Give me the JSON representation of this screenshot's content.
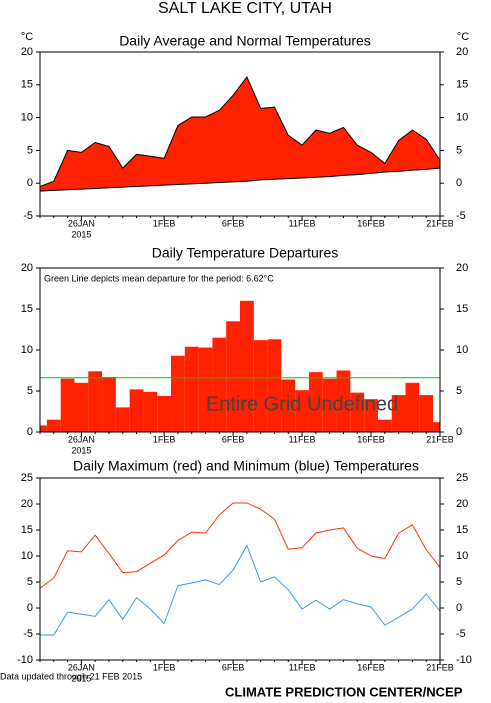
{
  "title": "SALT LAKE CITY, UTAH",
  "chart_data": [
    {
      "type": "area",
      "title": "Daily Average and Normal Temperatures",
      "y_unit": "°C",
      "categories": [
        null,
        null,
        null,
        "26JAN",
        null,
        null,
        null,
        null,
        null,
        "1FEB",
        null,
        null,
        null,
        null,
        "6FEB",
        null,
        null,
        null,
        null,
        "11FEB",
        null,
        null,
        null,
        null,
        "16FEB",
        null,
        null,
        null,
        null,
        "21FEB"
      ],
      "year_label": "2015",
      "series": [
        {
          "color": "#ff2200",
          "values": [
            -0.5,
            0.3,
            5.0,
            4.7,
            6.2,
            5.6,
            2.3,
            4.4,
            4.1,
            3.8,
            8.8,
            10.1,
            10.1,
            11.1,
            13.4,
            16.2,
            11.4,
            11.6,
            7.3,
            5.8,
            8.1,
            7.6,
            8.5,
            5.8,
            4.7,
            3.0,
            6.5,
            8.1,
            6.7,
            3.5
          ]
        },
        {
          "color": "#000000",
          "values": [
            -1.2,
            -1.1,
            -1.0,
            -0.9,
            -0.8,
            -0.7,
            -0.6,
            -0.5,
            -0.4,
            -0.3,
            -0.2,
            -0.1,
            0.0,
            0.1,
            0.2,
            0.3,
            0.5,
            0.6,
            0.7,
            0.8,
            0.9,
            1.0,
            1.2,
            1.3,
            1.5,
            1.7,
            1.8,
            2.0,
            2.1,
            2.3
          ]
        }
      ],
      "ylim": [
        -5,
        20
      ],
      "yticks": [
        -5,
        0,
        5,
        10,
        15,
        20
      ]
    },
    {
      "type": "bar",
      "title": "Daily Temperature Departures",
      "annotation": "Green Line depicts mean departure for the period:  6.62°C",
      "overlay_text": "Entire Grid Undefined",
      "categories": [
        null,
        null,
        null,
        "26JAN",
        null,
        null,
        null,
        null,
        null,
        "1FEB",
        null,
        null,
        null,
        null,
        "6FEB",
        null,
        null,
        null,
        null,
        "11FEB",
        null,
        null,
        null,
        null,
        "16FEB",
        null,
        null,
        null,
        null,
        "21FEB"
      ],
      "year_label": "2015",
      "values": [
        0.8,
        1.5,
        6.5,
        6.0,
        7.4,
        6.7,
        3.0,
        5.2,
        4.9,
        4.4,
        9.3,
        10.4,
        10.3,
        11.5,
        13.5,
        16.0,
        11.2,
        11.3,
        6.4,
        5.1,
        7.3,
        6.5,
        7.5,
        4.8,
        4.0,
        1.5,
        4.5,
        6.0,
        4.5,
        1.2
      ],
      "color": "#ff2200",
      "mean_line": {
        "value": 6.62,
        "color": "#00cc00"
      },
      "ylim": [
        0,
        20
      ],
      "yticks": [
        0,
        5,
        10,
        15,
        20
      ]
    },
    {
      "type": "line",
      "title": "Daily Maximum (red) and Minimum (blue) Temperatures",
      "categories": [
        null,
        null,
        null,
        "26JAN",
        null,
        null,
        null,
        null,
        null,
        "1FEB",
        null,
        null,
        null,
        null,
        "6FEB",
        null,
        null,
        null,
        null,
        "11FEB",
        null,
        null,
        null,
        null,
        "16FEB",
        null,
        null,
        null,
        null,
        "21FEB"
      ],
      "year_label": "2015",
      "series": [
        {
          "color": "#ff3300",
          "values": [
            3.8,
            5.8,
            11,
            10.8,
            14,
            10.5,
            6.8,
            7,
            8.6,
            10.2,
            13,
            14.6,
            14.4,
            17.9,
            20.2,
            20.2,
            19,
            17.1,
            11.3,
            11.6,
            14.4,
            15,
            15.4,
            11.5,
            10,
            9.5,
            14.4,
            16,
            11.2,
            7.8
          ]
        },
        {
          "color": "#3399ff",
          "values": [
            -5.2,
            -5.2,
            -0.8,
            -1.2,
            -1.6,
            1.6,
            -2.2,
            2,
            -0.2,
            -3,
            4.3,
            4.8,
            5.4,
            4.5,
            7.3,
            12,
            5,
            6,
            3.5,
            -0.2,
            1.5,
            -0.2,
            1.6,
            0.8,
            0.2,
            -3.3,
            -1.8,
            -0.2,
            2.7,
            -0.6
          ]
        }
      ],
      "ylim": [
        -10,
        25
      ],
      "yticks": [
        -10,
        -5,
        0,
        5,
        10,
        15,
        20,
        25
      ]
    }
  ],
  "footer": {
    "note": "Data updated through 21 FEB 2015",
    "credit": "CLIMATE PREDICTION CENTER/NCEP"
  }
}
